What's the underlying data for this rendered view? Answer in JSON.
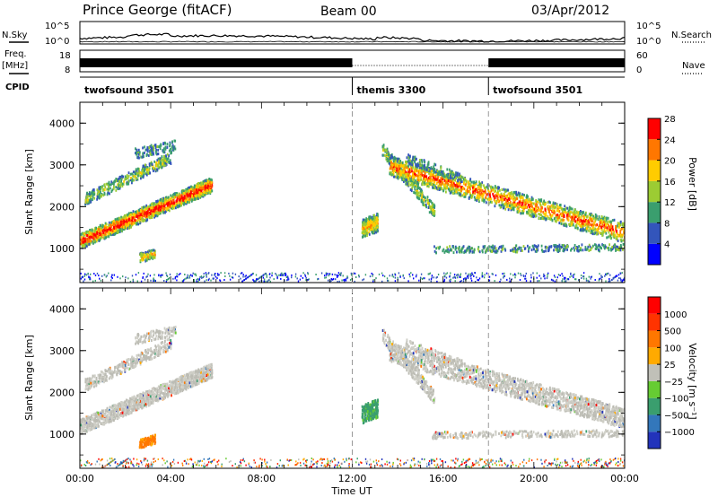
{
  "header": {
    "station": "Prince George (fitACF)",
    "beam": "Beam 00",
    "date": "03/Apr/2012"
  },
  "panel_labels": {
    "nsky": "N.Sky",
    "freq_line1": "Freq.",
    "freq_line2": "[MHz]",
    "cpid": "CPID",
    "nsearch": "N.Search",
    "nave": "Nave"
  },
  "noise_panel": {
    "left_ticks": [
      "10^5",
      "10^0"
    ],
    "right_ticks": [
      "10^5",
      "10^0"
    ]
  },
  "freq_panel": {
    "left_ticks": [
      "18",
      "8"
    ],
    "right_ticks": [
      "60",
      "0"
    ]
  },
  "cpid_segments": [
    {
      "label": "twofsound 3501",
      "start_hour": 0,
      "end_hour": 12
    },
    {
      "label": "themis 3300",
      "start_hour": 12,
      "end_hour": 18
    },
    {
      "label": "twofsound 3501",
      "start_hour": 18,
      "end_hour": 24
    }
  ],
  "chart_data": [
    {
      "type": "heatmap",
      "quantity": "power",
      "ylabel": "Slant Range [km]",
      "xlim": [
        0,
        24
      ],
      "ylim": [
        180,
        4500
      ],
      "yticks": [
        "1000",
        "2000",
        "3000",
        "4000"
      ],
      "colorbar": {
        "label": "Power [dB]",
        "ticks": [
          "4",
          "8",
          "12",
          "16",
          "20",
          "24",
          "28"
        ],
        "colors": [
          "#0000ff",
          "#3355bb",
          "#3a9e6e",
          "#9ccc33",
          "#ffcc00",
          "#ff7700",
          "#ff0000"
        ]
      }
    },
    {
      "type": "heatmap",
      "quantity": "velocity",
      "ylabel": "Slant Range [km]",
      "xlabel": "Time UT",
      "xlim": [
        0,
        24
      ],
      "ylim": [
        180,
        4500
      ],
      "yticks": [
        "1000",
        "2000",
        "3000",
        "4000"
      ],
      "xticks": [
        "00:00",
        "04:00",
        "08:00",
        "12:00",
        "16:00",
        "20:00",
        "00:00"
      ],
      "colorbar": {
        "label": "Velocity [m s⁻¹]",
        "ticks": [
          "1000",
          "500",
          "100",
          "25",
          "−25",
          "−100",
          "−500",
          "−1000"
        ],
        "colors": [
          "#2233bb",
          "#3377bb",
          "#3a9e6e",
          "#66cc33",
          "#c0c0b8",
          "#ffaa00",
          "#ff7700",
          "#ff3300",
          "#ff0000"
        ]
      }
    }
  ]
}
